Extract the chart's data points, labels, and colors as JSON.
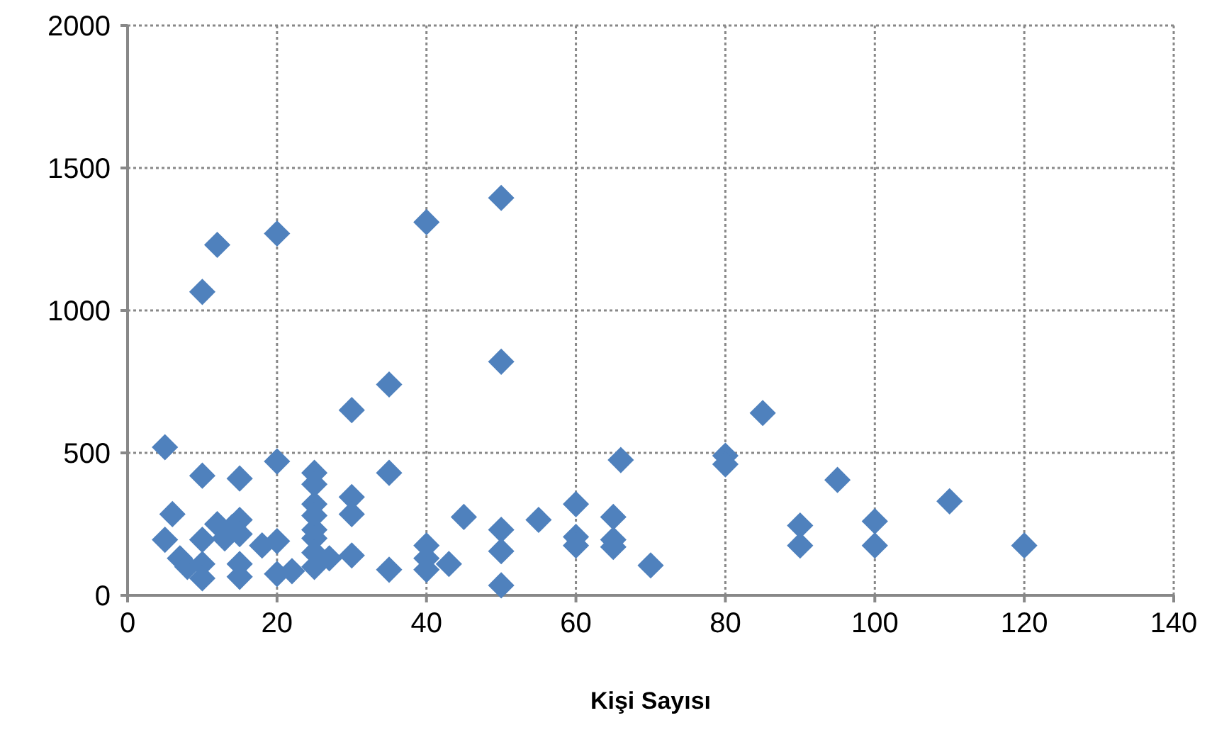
{
  "chart_data": {
    "type": "scatter",
    "xlabel": "Kişi Sayısı",
    "xlim": [
      0,
      140
    ],
    "xticks": [
      0,
      20,
      40,
      60,
      80,
      100,
      120,
      140
    ],
    "ylim": [
      0,
      2000
    ],
    "yticks": [
      0,
      500,
      1000,
      1500,
      2000
    ],
    "grid": true,
    "marker": "diamond",
    "series": [
      {
        "color": "#4f81bd",
        "x": [
          5,
          5,
          6,
          7,
          8,
          10,
          10,
          10,
          10,
          10,
          12,
          12,
          13,
          14,
          15,
          15,
          15,
          15,
          15,
          18,
          20,
          20,
          20,
          20,
          22,
          25,
          25,
          25,
          25,
          25,
          25,
          25,
          25,
          27,
          30,
          30,
          30,
          30,
          35,
          35,
          35,
          40,
          40,
          40,
          40,
          43,
          45,
          50,
          50,
          50,
          50,
          50,
          55,
          60,
          60,
          60,
          65,
          65,
          65,
          66,
          70,
          80,
          80,
          85,
          90,
          90,
          95,
          100,
          100,
          110,
          120
        ],
        "values": [
          520,
          195,
          285,
          130,
          100,
          1065,
          420,
          195,
          110,
          60,
          1230,
          250,
          200,
          240,
          410,
          265,
          215,
          110,
          65,
          175,
          1270,
          470,
          190,
          75,
          85,
          430,
          390,
          320,
          280,
          230,
          200,
          150,
          100,
          130,
          650,
          345,
          285,
          140,
          740,
          430,
          90,
          1310,
          175,
          130,
          90,
          110,
          275,
          1395,
          820,
          230,
          155,
          35,
          265,
          320,
          205,
          175,
          275,
          195,
          170,
          475,
          105,
          490,
          460,
          640,
          245,
          175,
          405,
          260,
          175,
          330,
          175
        ]
      }
    ]
  }
}
